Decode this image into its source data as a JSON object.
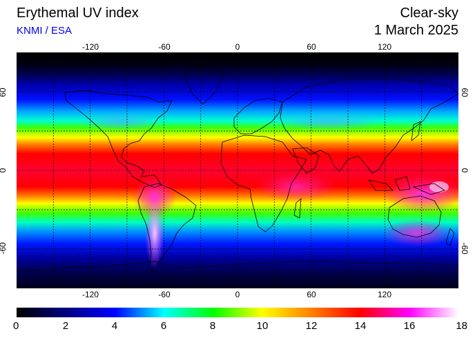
{
  "header": {
    "title": "Erythemal UV index",
    "source": "KNMI / ESA",
    "mode": "Clear-sky",
    "date": "1 March 2025"
  },
  "axes": {
    "lon_ticks": [
      -120,
      -60,
      0,
      60,
      120
    ],
    "lat_ticks": [
      60,
      0,
      -60
    ],
    "lat_ticks_left": [
      "60",
      "0",
      "-60"
    ],
    "lat_ticks_right": [
      "60",
      "0",
      "-60"
    ],
    "lon_labels_top": [
      "-120",
      "-60",
      "0",
      "60",
      "120"
    ],
    "lon_labels_bottom": [
      "-120",
      "-60",
      "0",
      "60",
      "120"
    ],
    "lon_range": [
      -180,
      180
    ],
    "lat_range": [
      -90,
      90
    ],
    "grid_spacing_deg": 30
  },
  "colorbar": {
    "labels": [
      "0",
      "2",
      "4",
      "6",
      "8",
      "10",
      "12",
      "14",
      "16",
      "18"
    ],
    "range": [
      0,
      18
    ],
    "stops": [
      "#000000",
      "#000080",
      "#0000ff",
      "#00ffff",
      "#00ff00",
      "#ffff00",
      "#ff8000",
      "#ff0000",
      "#ff00ff",
      "#ffffff"
    ]
  },
  "colors": {
    "source_text": "#0000ee",
    "coastline": "#000000"
  }
}
